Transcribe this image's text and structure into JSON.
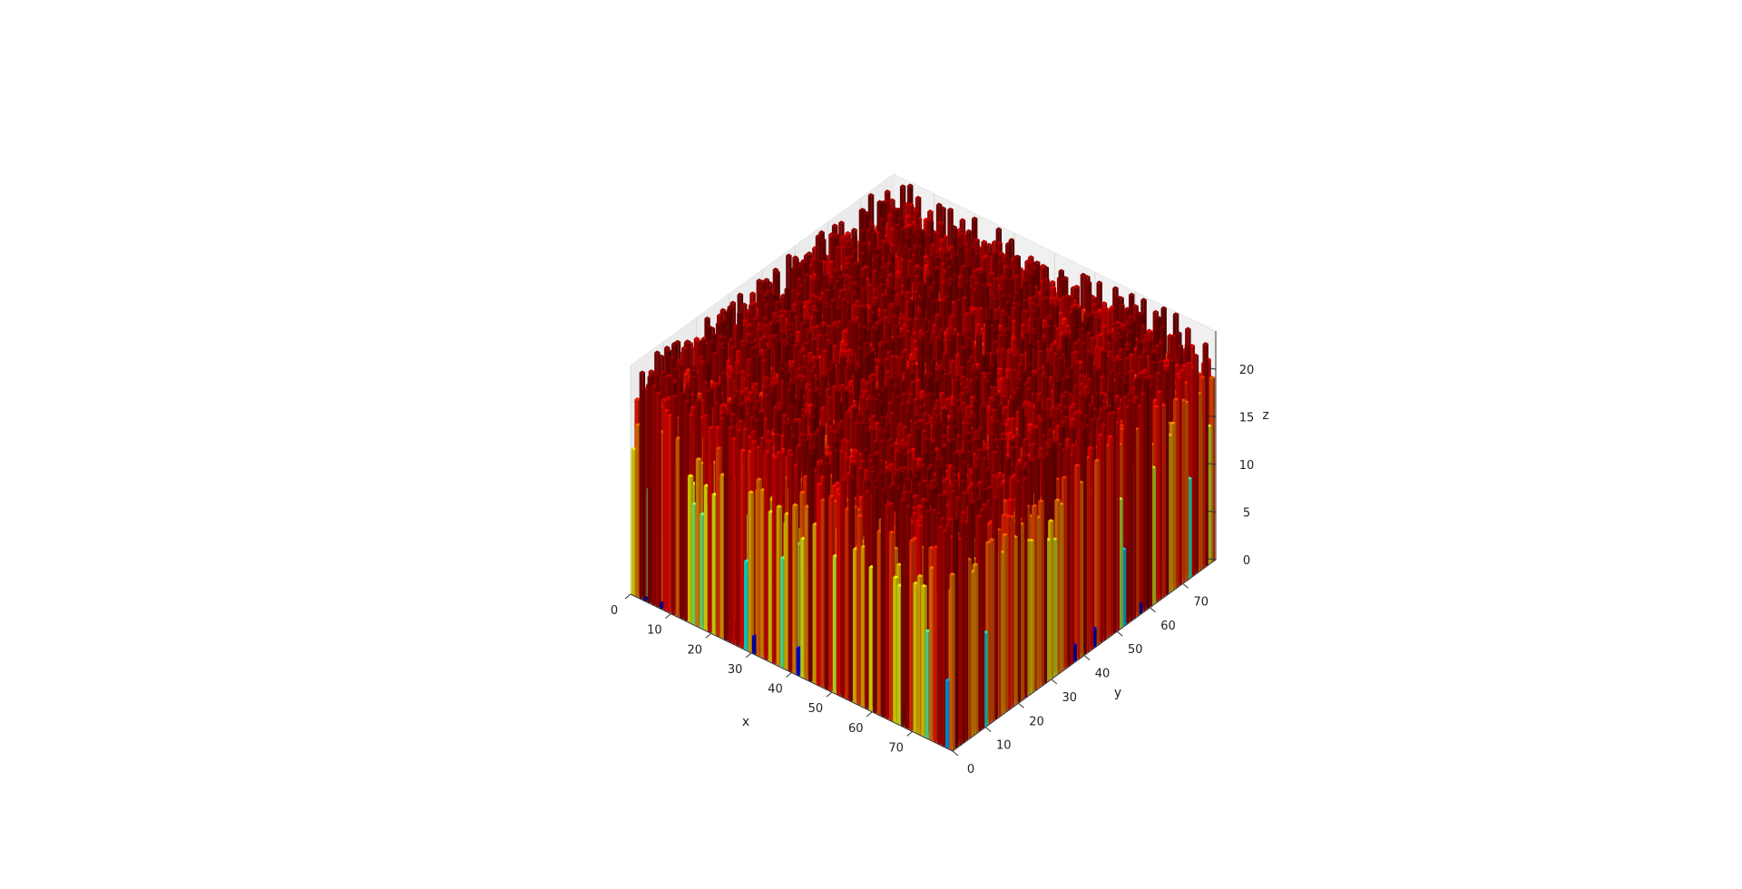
{
  "chart_data": {
    "type": "bar3d",
    "title": "",
    "xlabel": "x",
    "ylabel": "y",
    "zlabel": "z",
    "xlim": [
      0,
      80
    ],
    "ylim": [
      0,
      80
    ],
    "zlim": [
      0,
      24
    ],
    "x_ticks": [
      "0",
      "10",
      "20",
      "30",
      "40",
      "50",
      "60",
      "70"
    ],
    "y_ticks": [
      "0",
      "10",
      "20",
      "30",
      "40",
      "50",
      "60",
      "70"
    ],
    "z_ticks": [
      "0",
      "5",
      "10",
      "15",
      "20"
    ],
    "x_tick_values": [
      0,
      10,
      20,
      30,
      40,
      50,
      60,
      70
    ],
    "y_tick_values": [
      0,
      10,
      20,
      30,
      40,
      50,
      60,
      70
    ],
    "z_tick_values": [
      0,
      5,
      10,
      15,
      20
    ],
    "grid": true,
    "colormap": "jet",
    "colormap_stops": [
      "#00007f",
      "#0000ff",
      "#007fff",
      "#00ffff",
      "#7fff7f",
      "#ffff00",
      "#ff7f00",
      "#ff0000",
      "#7f0000"
    ],
    "data_summary": {
      "grid_size": [
        80,
        80
      ],
      "z_min": 0,
      "z_max": 24,
      "z_typical_range": [
        14,
        24
      ]
    }
  }
}
